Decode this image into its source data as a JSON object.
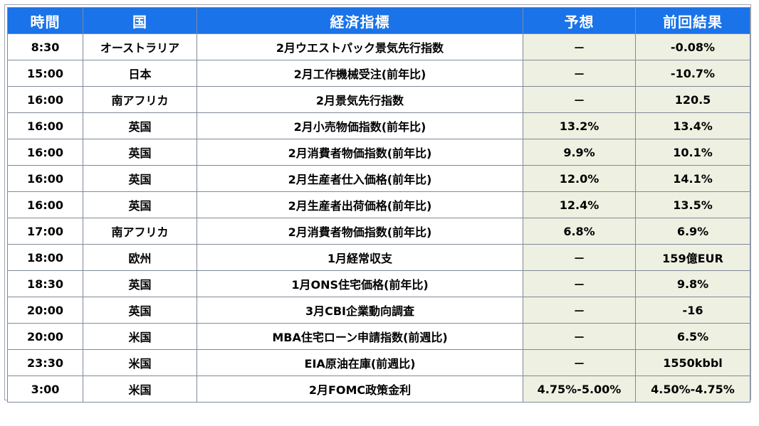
{
  "table": {
    "headers": [
      "時間",
      "国",
      "経済指標",
      "予想",
      "前回結果"
    ],
    "rows": [
      [
        "8:30",
        "オーストラリア",
        "2月ウエストパック景気先行指数",
        "－",
        "-0.08%"
      ],
      [
        "15:00",
        "日本",
        "2月工作機械受注(前年比)",
        "－",
        "-10.7%"
      ],
      [
        "16:00",
        "南アフリカ",
        "2月景気先行指数",
        "－",
        "120.5"
      ],
      [
        "16:00",
        "英国",
        "2月小売物価指数(前年比)",
        "13.2%",
        "13.4%"
      ],
      [
        "16:00",
        "英国",
        "2月消費者物価指数(前年比)",
        "9.9%",
        "10.1%"
      ],
      [
        "16:00",
        "英国",
        "2月生産者仕入価格(前年比)",
        "12.0%",
        "14.1%"
      ],
      [
        "16:00",
        "英国",
        "2月生産者出荷価格(前年比)",
        "12.4%",
        "13.5%"
      ],
      [
        "17:00",
        "南アフリカ",
        "2月消費者物価指数(前年比)",
        "6.8%",
        "6.9%"
      ],
      [
        "18:00",
        "欧州",
        "1月経常収支",
        "－",
        "159億EUR"
      ],
      [
        "18:30",
        "英国",
        "1月ONS住宅価格(前年比)",
        "－",
        "9.8%"
      ],
      [
        "20:00",
        "英国",
        "3月CBI企業動向調査",
        "－",
        "-16"
      ],
      [
        "20:00",
        "米国",
        "MBA住宅ローン申請指数(前週比)",
        "－",
        "6.5%"
      ],
      [
        "23:30",
        "米国",
        "EIA原油在庫(前週比)",
        "－",
        "1550kbbl"
      ],
      [
        "3:00",
        "米国",
        "2月FOMC政策金利",
        "4.75%-5.00%",
        "4.50%-4.75%"
      ]
    ]
  },
  "colors": {
    "header_bg": "#1a73e8",
    "header_text": "#ffffff",
    "shaded_cell": "#eef0e1",
    "border": "#7f8a99"
  }
}
